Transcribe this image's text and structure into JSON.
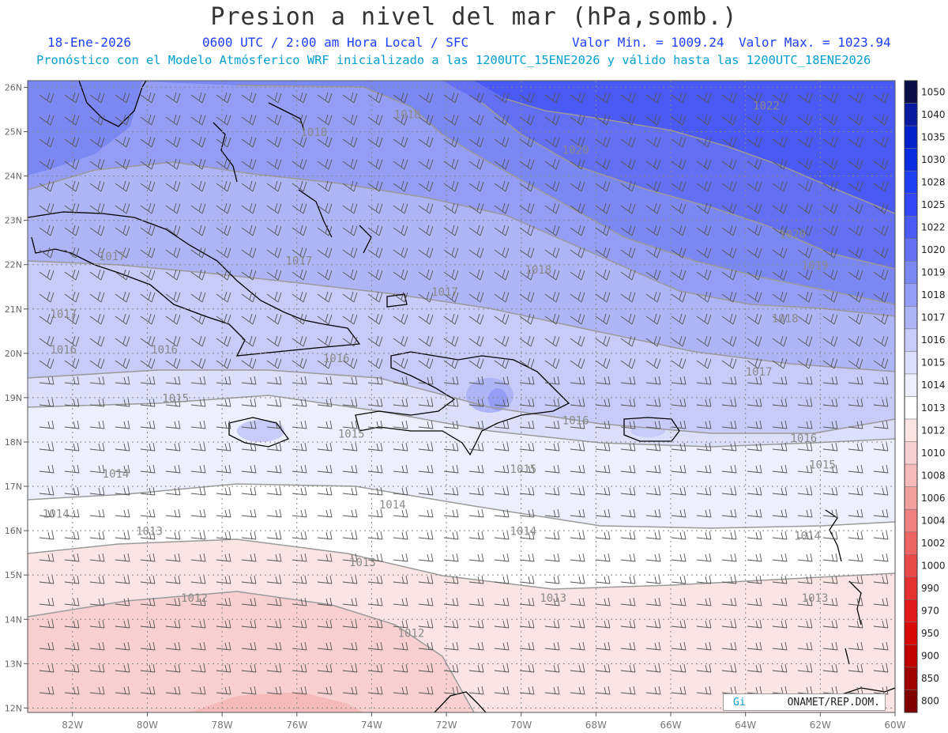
{
  "title": "Presion a nivel del mar (hPa,somb.)",
  "header": {
    "date": "18-Ene-2026",
    "time": "0600 UTC / 2:00 am Hora Local / SFC",
    "min_label": "Valor Min. = 1009.24",
    "max_label": "Valor Max. = 1023.94",
    "model_line": "Pronóstico con el Modelo Atmósferico WRF inicializado a las 1200UTC_15ENE2026 y válido hasta las  1200UTC_18ENE2026"
  },
  "map": {
    "lon_labels": [
      "82W",
      "80W",
      "78W",
      "76W",
      "74W",
      "72W",
      "70W",
      "68W",
      "66W",
      "64W",
      "62W",
      "60W"
    ],
    "lat_labels": [
      "26N",
      "25N",
      "24N",
      "23N",
      "22N",
      "21N",
      "20N",
      "19N",
      "18N",
      "17N",
      "16N",
      "15N",
      "14N",
      "13N",
      "12N"
    ],
    "contour_labels": [
      {
        "text": "1018",
        "lon": -73.4,
        "lat": 25.3
      },
      {
        "text": "1018",
        "lon": -75.9,
        "lat": 24.9
      },
      {
        "text": "1022",
        "lon": -63.8,
        "lat": 25.5
      },
      {
        "text": "1020",
        "lon": -68.9,
        "lat": 24.5
      },
      {
        "text": "1020",
        "lon": -63.1,
        "lat": 22.6
      },
      {
        "text": "1019",
        "lon": -62.5,
        "lat": 21.9
      },
      {
        "text": "1018",
        "lon": -69.9,
        "lat": 21.8
      },
      {
        "text": "1018",
        "lon": -63.3,
        "lat": 20.7
      },
      {
        "text": "1017",
        "lon": -81.3,
        "lat": 22.1
      },
      {
        "text": "1017",
        "lon": -76.3,
        "lat": 22.0
      },
      {
        "text": "1017",
        "lon": -72.4,
        "lat": 21.3
      },
      {
        "text": "1017",
        "lon": -64.0,
        "lat": 19.5
      },
      {
        "text": "1017",
        "lon": -82.6,
        "lat": 20.8
      },
      {
        "text": "1016",
        "lon": -82.6,
        "lat": 20.0
      },
      {
        "text": "1016",
        "lon": -79.9,
        "lat": 20.0
      },
      {
        "text": "1016",
        "lon": -75.3,
        "lat": 19.8
      },
      {
        "text": "1016",
        "lon": -68.9,
        "lat": 18.4
      },
      {
        "text": "1016",
        "lon": -62.8,
        "lat": 18.0
      },
      {
        "text": "1015",
        "lon": -79.6,
        "lat": 18.9
      },
      {
        "text": "1015",
        "lon": -74.9,
        "lat": 18.1
      },
      {
        "text": "1015",
        "lon": -70.3,
        "lat": 17.3
      },
      {
        "text": "1015",
        "lon": -62.3,
        "lat": 17.4
      },
      {
        "text": "1014",
        "lon": -81.2,
        "lat": 17.2
      },
      {
        "text": "1014",
        "lon": -82.8,
        "lat": 16.3
      },
      {
        "text": "1014",
        "lon": -73.8,
        "lat": 16.5
      },
      {
        "text": "1014",
        "lon": -70.3,
        "lat": 15.9
      },
      {
        "text": "1014",
        "lon": -62.7,
        "lat": 15.8
      },
      {
        "text": "1013",
        "lon": -80.3,
        "lat": 15.9
      },
      {
        "text": "1013",
        "lon": -74.6,
        "lat": 15.2
      },
      {
        "text": "1013",
        "lon": -69.5,
        "lat": 14.4
      },
      {
        "text": "1013",
        "lon": -62.5,
        "lat": 14.4
      },
      {
        "text": "1012",
        "lon": -79.1,
        "lat": 14.4
      },
      {
        "text": "1012",
        "lon": -73.3,
        "lat": 13.6
      }
    ]
  },
  "colorbar": {
    "levels": [
      "1050",
      "1040",
      "1035",
      "1030",
      "1028",
      "1025",
      "1022",
      "1020",
      "1019",
      "1018",
      "1017",
      "1016",
      "1015",
      "1014",
      "1013",
      "1012",
      "1010",
      "1008",
      "1006",
      "1004",
      "1002",
      "1000",
      "990",
      "970",
      "950",
      "900",
      "850",
      "800"
    ],
    "colors": [
      "#0a0f4a",
      "#0a1aa0",
      "#0020c8",
      "#0a2ce0",
      "#1f3ff5",
      "#3346f5",
      "#4b5af5",
      "#6370f2",
      "#7c88f2",
      "#959ef4",
      "#aeb5f6",
      "#c6cbf8",
      "#dcdffa",
      "#eeeffc",
      "#ffffff",
      "#fbe4e4",
      "#f8d0d0",
      "#f5baba",
      "#f29f9f",
      "#ef8080",
      "#ec6464",
      "#e84848",
      "#e53030",
      "#e01a1a",
      "#d80808",
      "#c00000",
      "#a00000",
      "#800000"
    ]
  },
  "credit": {
    "left": "Gi",
    "right": "ONAMET/REP.DOM."
  }
}
